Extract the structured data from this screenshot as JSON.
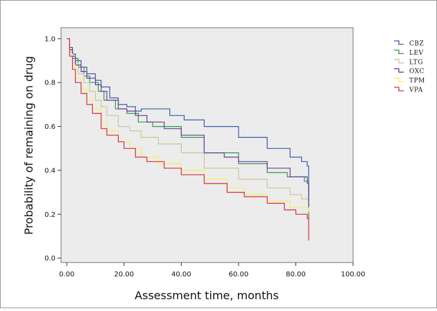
{
  "chart_data": {
    "type": "line",
    "step": true,
    "title": "",
    "xlabel": "Assessment time, months",
    "ylabel": "Probability of remaining on drug",
    "xlim": [
      -2,
      100
    ],
    "ylim": [
      -0.02,
      1.05
    ],
    "xticks": [
      0,
      20,
      40,
      60,
      80,
      100
    ],
    "xtick_labels": [
      "0.00",
      "20.00",
      "40.00",
      "60.00",
      "80.00",
      "100.00"
    ],
    "yticks": [
      0.0,
      0.2,
      0.4,
      0.6,
      0.8,
      1.0
    ],
    "ytick_labels": [
      "0.0",
      "0.2",
      "0.4",
      "0.6",
      "0.8",
      "1.0"
    ],
    "grid": false,
    "legend": "right",
    "background": "#ececec",
    "series": [
      {
        "name": "CBZ",
        "color": "#3b5bab",
        "x": [
          0,
          1,
          2,
          3,
          5,
          7,
          10,
          12,
          15,
          18,
          21,
          24,
          26,
          36,
          41,
          48,
          60,
          70,
          78,
          82,
          84,
          84.5
        ],
        "y": [
          1.0,
          0.96,
          0.93,
          0.9,
          0.87,
          0.84,
          0.81,
          0.78,
          0.73,
          0.7,
          0.69,
          0.67,
          0.68,
          0.65,
          0.63,
          0.6,
          0.55,
          0.5,
          0.46,
          0.44,
          0.42,
          0.26
        ]
      },
      {
        "name": "LEV",
        "color": "#2e9a4a",
        "x": [
          0,
          1,
          2,
          4,
          6,
          8,
          11,
          13,
          17,
          21,
          25,
          30,
          40,
          48,
          60,
          70,
          77,
          83,
          84.5
        ],
        "y": [
          1.0,
          0.95,
          0.91,
          0.87,
          0.83,
          0.8,
          0.76,
          0.72,
          0.68,
          0.66,
          0.62,
          0.6,
          0.55,
          0.48,
          0.43,
          0.39,
          0.37,
          0.35,
          0.18
        ]
      },
      {
        "name": "LTG",
        "color": "#c8c89a",
        "x": [
          0,
          1,
          2,
          4,
          6,
          8,
          10,
          12,
          14,
          18,
          22,
          26,
          32,
          40,
          48,
          60,
          70,
          78,
          82,
          84.5
        ],
        "y": [
          1.0,
          0.94,
          0.89,
          0.84,
          0.8,
          0.76,
          0.72,
          0.69,
          0.65,
          0.6,
          0.58,
          0.55,
          0.52,
          0.48,
          0.41,
          0.36,
          0.32,
          0.29,
          0.27,
          0.22
        ]
      },
      {
        "name": "OXC",
        "color": "#6a3d9a",
        "x": [
          0,
          1,
          2,
          3,
          5,
          7,
          10,
          12,
          14,
          18,
          21,
          24,
          28,
          34,
          40,
          48,
          55,
          60,
          70,
          78,
          84,
          84.5
        ],
        "y": [
          1.0,
          0.95,
          0.92,
          0.88,
          0.85,
          0.82,
          0.79,
          0.76,
          0.72,
          0.68,
          0.67,
          0.65,
          0.62,
          0.59,
          0.56,
          0.48,
          0.46,
          0.44,
          0.41,
          0.37,
          0.34,
          0.23
        ]
      },
      {
        "name": "TPM",
        "color": "#f6ef5a",
        "x": [
          0,
          1,
          2,
          3,
          5,
          7,
          9,
          12,
          14,
          18,
          22,
          26,
          32,
          40,
          48,
          56,
          62,
          70,
          78,
          84.5
        ],
        "y": [
          1.0,
          0.93,
          0.88,
          0.82,
          0.77,
          0.72,
          0.68,
          0.62,
          0.58,
          0.53,
          0.5,
          0.46,
          0.43,
          0.4,
          0.36,
          0.32,
          0.29,
          0.26,
          0.23,
          0.21
        ]
      },
      {
        "name": "VPA",
        "color": "#d63040",
        "x": [
          0,
          1,
          2,
          3,
          5,
          7,
          9,
          12,
          14,
          18,
          20,
          24,
          28,
          34,
          40,
          48,
          56,
          62,
          70,
          76,
          80,
          84,
          84.5
        ],
        "y": [
          1.0,
          0.92,
          0.86,
          0.8,
          0.75,
          0.7,
          0.66,
          0.59,
          0.56,
          0.53,
          0.5,
          0.46,
          0.44,
          0.41,
          0.38,
          0.34,
          0.3,
          0.28,
          0.25,
          0.22,
          0.2,
          0.18,
          0.08
        ]
      }
    ]
  }
}
